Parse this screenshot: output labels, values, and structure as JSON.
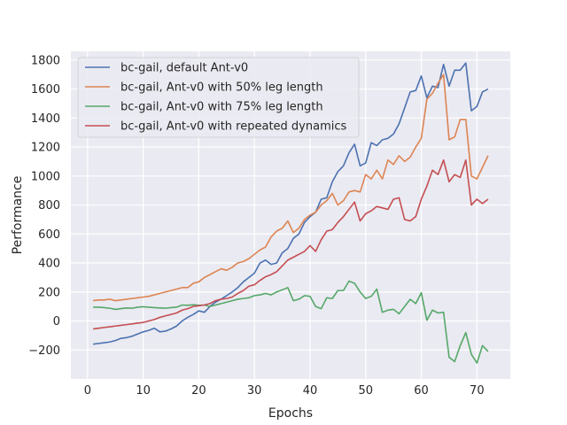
{
  "chart_data": {
    "type": "line",
    "title": "",
    "xlabel": "Epochs",
    "ylabel": "Performance",
    "xlim": [
      -3,
      76
    ],
    "ylim": [
      -400,
      1860
    ],
    "xticks": [
      0,
      10,
      20,
      30,
      40,
      50,
      60,
      70
    ],
    "yticks": [
      -200,
      0,
      200,
      400,
      600,
      800,
      1000,
      1200,
      1400,
      1600,
      1800
    ],
    "grid": true,
    "legend_position": "upper-left",
    "x": [
      1,
      2,
      3,
      4,
      5,
      6,
      7,
      8,
      9,
      10,
      11,
      12,
      13,
      14,
      15,
      16,
      17,
      18,
      19,
      20,
      21,
      22,
      23,
      24,
      25,
      26,
      27,
      28,
      29,
      30,
      31,
      32,
      33,
      34,
      35,
      36,
      37,
      38,
      39,
      40,
      41,
      42,
      43,
      44,
      45,
      46,
      47,
      48,
      49,
      50,
      51,
      52,
      53,
      54,
      55,
      56,
      57,
      58,
      59,
      60,
      61,
      62,
      63,
      64,
      65,
      66,
      67,
      68,
      69,
      70,
      71,
      72
    ],
    "series": [
      {
        "name": "bc-gail, default Ant-v0",
        "color": "#4c72b0",
        "values": [
          -160,
          -155,
          -150,
          -145,
          -135,
          -120,
          -115,
          -105,
          -90,
          -75,
          -65,
          -50,
          -75,
          -70,
          -55,
          -35,
          0,
          25,
          45,
          70,
          60,
          100,
          130,
          150,
          175,
          200,
          230,
          270,
          300,
          330,
          400,
          420,
          390,
          400,
          470,
          500,
          570,
          600,
          680,
          720,
          750,
          840,
          850,
          960,
          1030,
          1070,
          1160,
          1220,
          1070,
          1090,
          1230,
          1210,
          1250,
          1260,
          1290,
          1360,
          1470,
          1580,
          1590,
          1690,
          1540,
          1620,
          1610,
          1770,
          1620,
          1730,
          1730,
          1780,
          1450,
          1480,
          1580,
          1600
        ]
      },
      {
        "name": "bc-gail, Ant-v0 with 50% leg length",
        "color": "#dd8452",
        "values": [
          140,
          145,
          145,
          150,
          140,
          145,
          150,
          155,
          160,
          165,
          170,
          180,
          190,
          200,
          210,
          220,
          230,
          230,
          260,
          270,
          300,
          320,
          340,
          360,
          350,
          370,
          400,
          410,
          430,
          460,
          490,
          510,
          580,
          620,
          640,
          690,
          610,
          640,
          700,
          730,
          750,
          800,
          830,
          880,
          800,
          830,
          890,
          900,
          890,
          1010,
          980,
          1040,
          980,
          1110,
          1080,
          1140,
          1100,
          1130,
          1200,
          1260,
          1530,
          1570,
          1640,
          1700,
          1250,
          1270,
          1390,
          1390,
          1000,
          980,
          1060,
          1140
        ]
      },
      {
        "name": "bc-gail, Ant-v0 with 75% leg length",
        "color": "#55a868",
        "values": [
          95,
          95,
          92,
          88,
          80,
          85,
          90,
          88,
          95,
          98,
          95,
          92,
          90,
          88,
          92,
          95,
          110,
          108,
          112,
          108,
          110,
          100,
          110,
          120,
          130,
          140,
          150,
          155,
          160,
          175,
          180,
          190,
          180,
          200,
          215,
          230,
          140,
          150,
          175,
          170,
          100,
          85,
          160,
          155,
          210,
          210,
          275,
          260,
          200,
          155,
          170,
          220,
          60,
          75,
          80,
          50,
          100,
          150,
          120,
          195,
          5,
          75,
          55,
          60,
          -250,
          -280,
          -170,
          -80,
          -230,
          -290,
          -170,
          -210
        ]
      },
      {
        "name": "bc-gail, Ant-v0 with repeated dynamics",
        "color": "#c44e52",
        "values": [
          -55,
          -50,
          -45,
          -40,
          -35,
          -30,
          -25,
          -20,
          -15,
          -10,
          0,
          10,
          25,
          35,
          45,
          55,
          75,
          85,
          100,
          105,
          110,
          120,
          140,
          150,
          155,
          165,
          190,
          210,
          240,
          250,
          280,
          305,
          320,
          340,
          380,
          420,
          440,
          460,
          480,
          520,
          480,
          560,
          620,
          630,
          680,
          720,
          770,
          820,
          690,
          740,
          760,
          790,
          780,
          770,
          840,
          850,
          700,
          690,
          720,
          840,
          930,
          1040,
          1010,
          1110,
          960,
          1010,
          990,
          1110,
          800,
          840,
          810,
          840
        ]
      }
    ]
  }
}
